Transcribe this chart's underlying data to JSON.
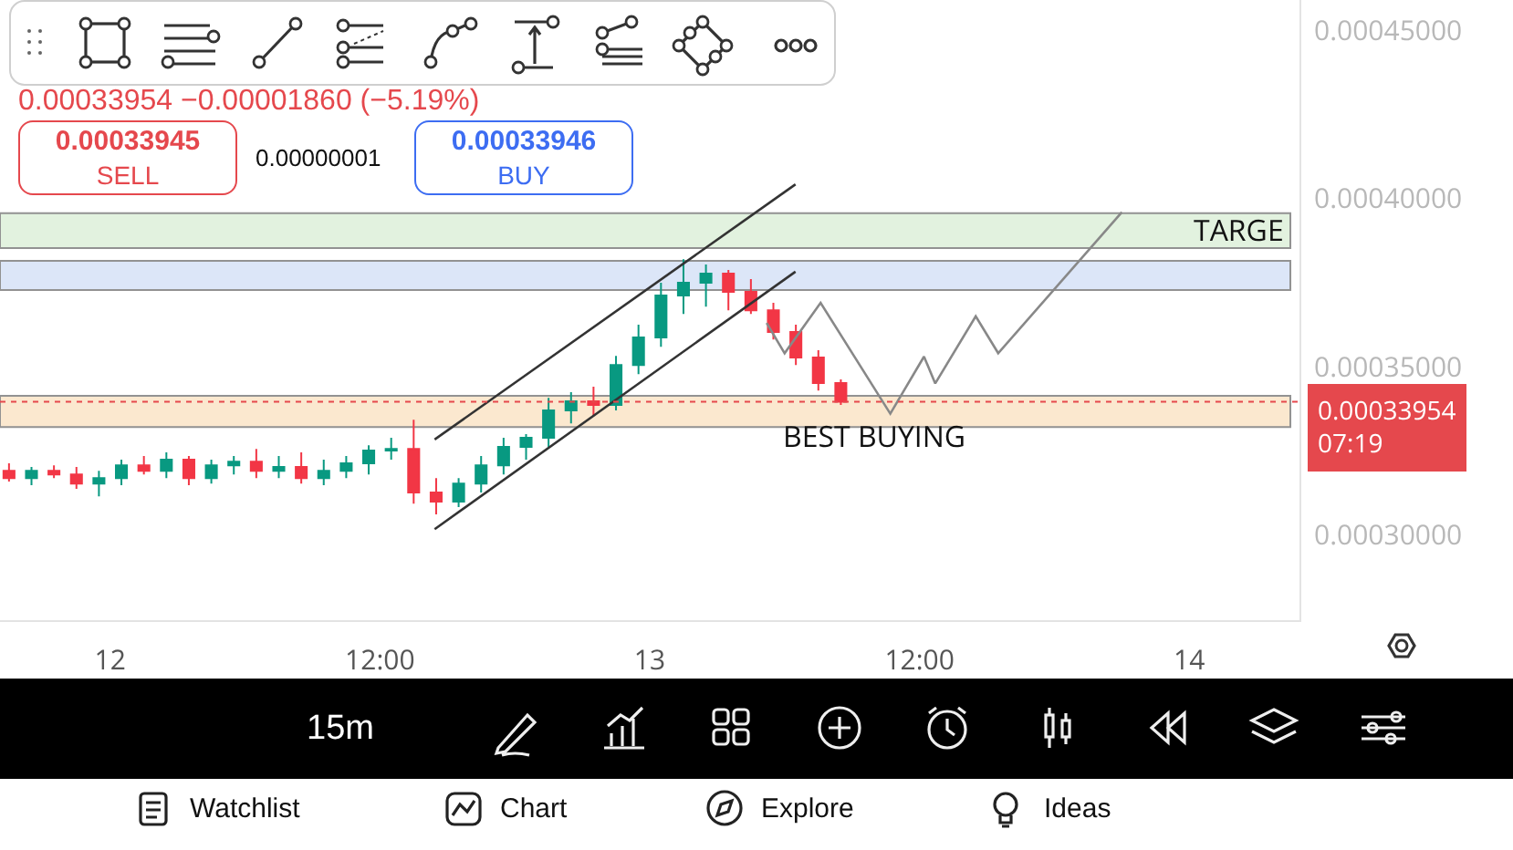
{
  "chart_data": {
    "type": "candlestick",
    "x": [
      "--01-11T19:30",
      "--01-11T20:30",
      "--01-11T21:30",
      "--01-11T22:30",
      "--01-11T23:30",
      "--01-12T00:30",
      "--01-12T01:30",
      "--01-12T02:30",
      "--01-12T03:30",
      "--01-12T04:30",
      "--01-12T05:30",
      "--01-12T06:30",
      "--01-12T07:30",
      "--01-12T08:30",
      "--01-12T09:30",
      "--01-12T10:30",
      "--01-12T11:30",
      "--01-12T12:30",
      "--01-12T13:30",
      "--01-12T14:30",
      "--01-12T15:30",
      "--01-12T16:30",
      "--01-12T17:30",
      "--01-12T18:30",
      "--01-12T19:30",
      "--01-12T20:30",
      "--01-12T21:30",
      "--01-12T22:30",
      "--01-12T23:30",
      "--01-13T00:30",
      "--01-13T01:30",
      "--01-13T02:30",
      "--01-13T03:30",
      "--01-13T04:30",
      "--01-13T05:30",
      "--01-13T06:30",
      "--01-13T07:30",
      "--01-13T08:30"
    ],
    "ohlc": [
      [
        0.000319,
        0.0003212,
        0.0003158,
        0.0003168
      ],
      [
        0.0003168,
        0.0003201,
        0.0003147,
        0.000319
      ],
      [
        0.000319,
        0.0003206,
        0.0003168,
        0.0003179
      ],
      [
        0.0003179,
        0.0003201,
        0.0003136,
        0.0003152
      ],
      [
        0.0003152,
        0.000319,
        0.0003114,
        0.0003168
      ],
      [
        0.0003168,
        0.0003223,
        0.0003147,
        0.0003206
      ],
      [
        0.0003206,
        0.0003234,
        0.0003179,
        0.000319
      ],
      [
        0.000319,
        0.0003245,
        0.0003168,
        0.0003223
      ],
      [
        0.0003223,
        0.0003234,
        0.0003147,
        0.0003168
      ],
      [
        0.0003168,
        0.0003223,
        0.0003152,
        0.0003206
      ],
      [
        0.0003206,
        0.0003234,
        0.0003179,
        0.0003217
      ],
      [
        0.0003217,
        0.0003255,
        0.0003168,
        0.000319
      ],
      [
        0.000319,
        0.0003234,
        0.0003168,
        0.0003201
      ],
      [
        0.0003201,
        0.0003245,
        0.0003152,
        0.0003168
      ],
      [
        0.0003168,
        0.0003223,
        0.0003147,
        0.000319
      ],
      [
        0.000319,
        0.0003234,
        0.0003168,
        0.0003212
      ],
      [
        0.0003212,
        0.0003266,
        0.0003179,
        0.000325
      ],
      [
        0.000325,
        0.0003288,
        0.0003223,
        0.0003255
      ],
      [
        0.0003255,
        0.0003342,
        0.0003092,
        0.0003125
      ],
      [
        0.0003125,
        0.0003168,
        0.000306,
        0.0003098
      ],
      [
        0.0003098,
        0.0003168,
        0.0003082,
        0.0003152
      ],
      [
        0.0003152,
        0.0003234,
        0.0003125,
        0.0003206
      ],
      [
        0.0003206,
        0.0003288,
        0.0003179,
        0.0003261
      ],
      [
        0.0003261,
        0.0003299,
        0.0003223,
        0.0003288
      ],
      [
        0.0003288,
        0.0003407,
        0.0003261,
        0.000337
      ],
      [
        0.000337,
        0.0003424,
        0.0003331,
        0.0003397
      ],
      [
        0.0003397,
        0.000344,
        0.0003353,
        0.0003386
      ],
      [
        0.0003386,
        0.0003532,
        0.000337,
        0.0003505
      ],
      [
        0.0003505,
        0.0003625,
        0.0003478,
        0.0003587
      ],
      [
        0.0003587,
        0.000375,
        0.0003559,
        0.0003712
      ],
      [
        0.0003712,
        0.000382,
        0.0003657,
        0.000375
      ],
      [
        0.000375,
        0.0003804,
        0.0003679,
        0.0003777
      ],
      [
        0.0003777,
        0.0003788,
        0.0003668,
        0.0003723
      ],
      [
        0.0003723,
        0.0003761,
        0.0003657,
        0.0003668
      ],
      [
        0.0003668,
        0.000369,
        0.0003581,
        0.0003603
      ],
      [
        0.0003603,
        0.0003625,
        0.0003505,
        0.0003527
      ],
      [
        0.0003527,
        0.0003549,
        0.0003429,
        0.0003451
      ],
      [
        0.0003451,
        0.0003462,
        0.0003386,
        0.00033954
      ]
    ],
    "series": [
      {
        "type": "line",
        "color": "#333333",
        "x": [
          "--01-12T14:26",
          "--01-13T06:29"
        ],
        "values": [
          0.0003283,
          0.0004043
        ]
      },
      {
        "type": "line",
        "color": "#333333",
        "x": [
          "--01-12T14:26",
          "--01-13T06:29"
        ],
        "values": [
          0.0003016,
          0.0003783
        ]
      },
      {
        "type": "line",
        "color": "#888888",
        "x": [
          "--01-13T05:12",
          "--01-13T06:00",
          "--01-13T07:36",
          "--01-13T10:42",
          "--01-13T12:12",
          "--01-13T12:42",
          "--01-13T14:30",
          "--01-13T15:30",
          "--01-13T21:00"
        ],
        "values": [
          0.000363,
          0.000354,
          0.000369,
          0.000336,
          0.000353,
          0.000345,
          0.000365,
          0.000354,
          0.000396
        ]
      }
    ],
    "xlim": [
      "--01-11T19:06",
      "--01-14T04:54"
    ],
    "xticks": [
      {
        "value": "--01-12T00:00",
        "label": "12"
      },
      {
        "value": "--01-12T12:00",
        "label": "12:00"
      },
      {
        "value": "--01-13T00:00",
        "label": "13"
      },
      {
        "value": "--01-13T12:00",
        "label": "12:00"
      },
      {
        "value": "--01-14T00:00",
        "label": "14"
      }
    ],
    "ylim": [
      0.0002745,
      0.0004592
    ],
    "yticks": [
      {
        "value": 0.0003,
        "label": "0.00030000"
      },
      {
        "value": 0.00035,
        "label": "0.00035000"
      },
      {
        "value": 0.0004,
        "label": "0.00040000"
      },
      {
        "value": 0.00045,
        "label": "0.00045000"
      }
    ],
    "ref_lines": [
      {
        "axis": "y",
        "value": 0.00033954,
        "label": "0.00033954",
        "color": "#e5484d",
        "line_style": "dotted"
      }
    ],
    "bands": [
      {
        "axis": "y",
        "from": 0.0003728,
        "to": 0.0003815,
        "label": null,
        "color": "#d4e0f7"
      },
      {
        "axis": "y",
        "from": 0.0003853,
        "to": 0.0003957,
        "label": "TARGE",
        "color": "#dcefd8"
      },
      {
        "axis": "y",
        "from": 0.000332,
        "to": 0.0003413,
        "label": "BEST BUYING",
        "color": "#fbe3c4"
      }
    ],
    "annotations": [
      "0.00033954 −0.00001860 (−5.19%)",
      "0.00033945",
      "SELL",
      "0.00000001",
      "0.00033946",
      "BUY",
      "07:19",
      "15m",
      "Watchlist",
      "Chart",
      "Explore",
      "Ideas"
    ]
  }
}
